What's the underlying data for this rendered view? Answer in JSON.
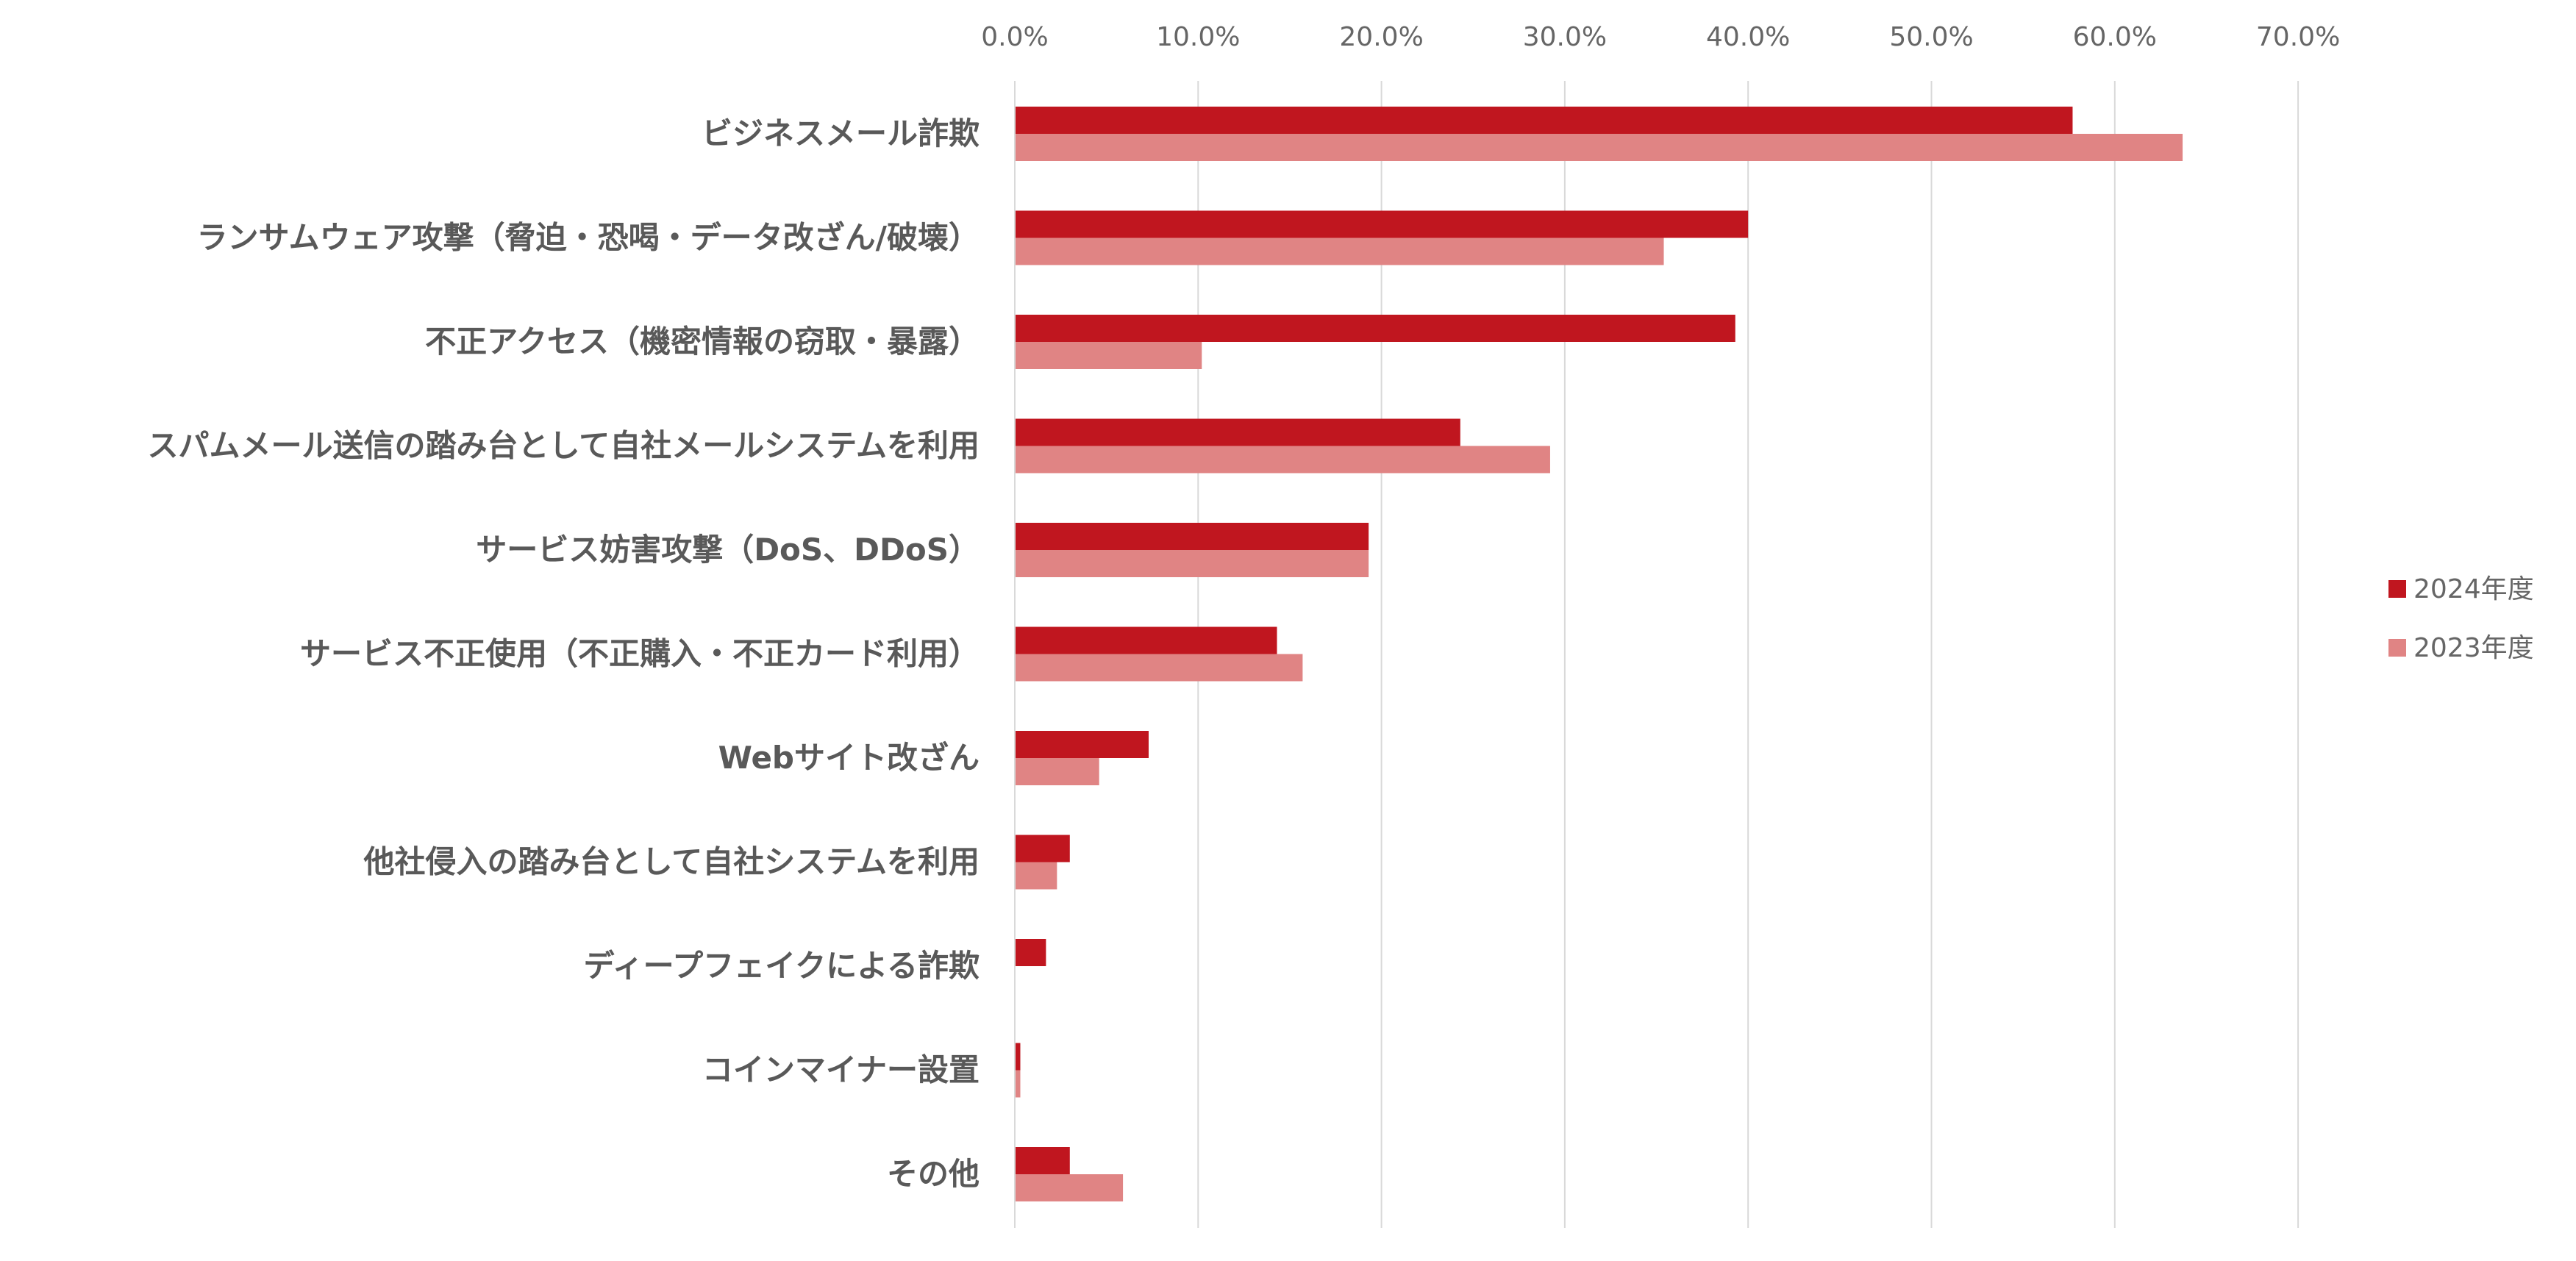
{
  "chart_data": {
    "type": "bar",
    "orientation": "horizontal",
    "categories": [
      "ビジネスメール詐欺",
      "ランサムウェア攻撃（脅迫・恐喝・データ改ざん/破壊）",
      "不正アクセス（機密情報の窃取・暴露）",
      "スパムメール送信の踏み台として自社メールシステムを利用",
      "サービス妨害攻撃（DoS、DDoS）",
      "サービス不正使用（不正購入・不正カード利用）",
      "Webサイト改ざん",
      "他社侵入の踏み台として自社システムを利用",
      "ディープフェイクによる詐欺",
      "コインマイナー設置",
      "その他"
    ],
    "series": [
      {
        "name": "2024年度",
        "color": "#c0161f",
        "values": [
          57.7,
          40.0,
          39.3,
          24.3,
          19.3,
          14.3,
          7.3,
          3.0,
          1.7,
          0.3,
          3.0
        ]
      },
      {
        "name": "2023年度",
        "color": "#e08484",
        "values": [
          63.7,
          35.4,
          10.2,
          29.2,
          19.3,
          15.7,
          4.6,
          2.3,
          0.0,
          0.3,
          5.9
        ]
      }
    ],
    "xlim": [
      0,
      70
    ],
    "xticks": [
      "0.0%",
      "10.0%",
      "20.0%",
      "30.0%",
      "40.0%",
      "50.0%",
      "60.0%",
      "70.0%"
    ],
    "xtick_values": [
      0,
      10,
      20,
      30,
      40,
      50,
      60,
      70
    ],
    "grid": true,
    "legend_position": "right"
  }
}
